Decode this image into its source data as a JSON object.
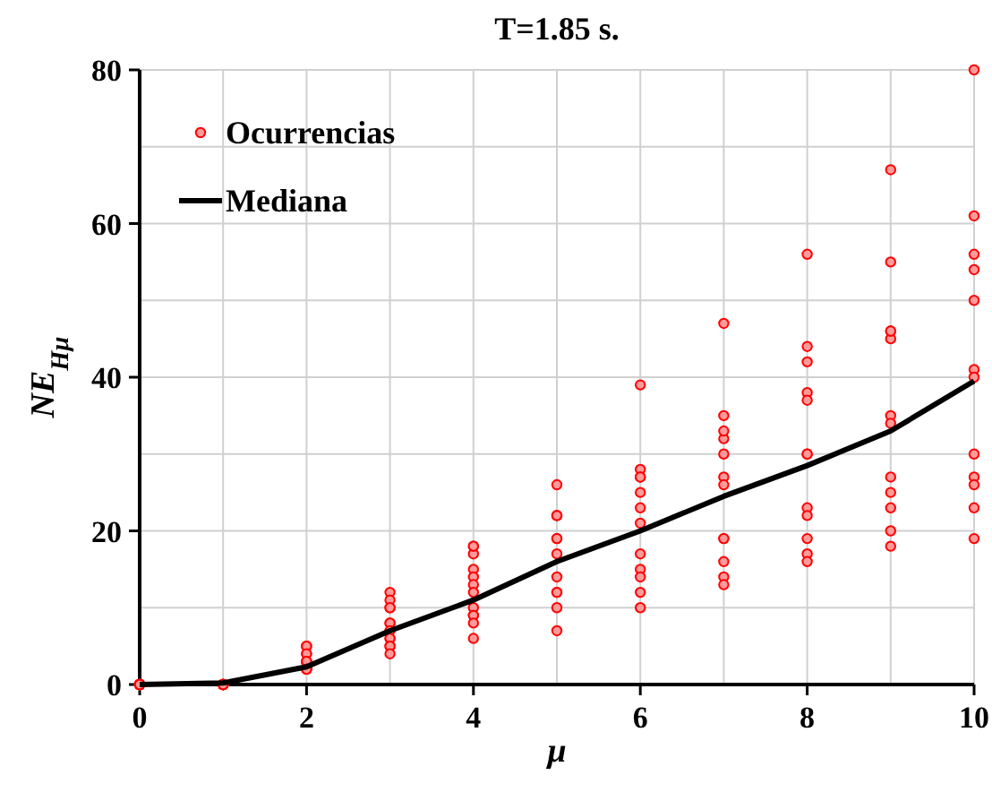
{
  "chart_data": {
    "type": "scatter",
    "title": "T=1.85 s.",
    "xlabel": "μ",
    "ylabel": "NE$_{Hμ}$",
    "xlim": [
      0,
      10
    ],
    "ylim": [
      0,
      80
    ],
    "xticks": [
      0,
      2,
      4,
      6,
      8,
      10
    ],
    "yticks": [
      0,
      20,
      40,
      60,
      80
    ],
    "grid": true,
    "legend": "top left",
    "series": [
      {
        "name": "Ocurrencias",
        "marker": "circle",
        "color": "#ff0000",
        "x": [
          0,
          1,
          2,
          3,
          4,
          5,
          6,
          7,
          8,
          9,
          10,
          0,
          1,
          2,
          3,
          4,
          5,
          6,
          7,
          8,
          9,
          10,
          0,
          1,
          2,
          3,
          4,
          5,
          6,
          7,
          8,
          9,
          10,
          0,
          1,
          2,
          3,
          4,
          5,
          6,
          7,
          8,
          9,
          10,
          0,
          1,
          2,
          3,
          4,
          5,
          6,
          7,
          8,
          9,
          10,
          0,
          1,
          2,
          3,
          4,
          5,
          6,
          7,
          8,
          9,
          10,
          0,
          1,
          2,
          3,
          4,
          5,
          6,
          7,
          8,
          9,
          10,
          0,
          1,
          2,
          3,
          4,
          5,
          6,
          7,
          8,
          9,
          10,
          0,
          1,
          2,
          3,
          4,
          5,
          6,
          7,
          8,
          9,
          10,
          0,
          1,
          2,
          3,
          4,
          5,
          6,
          7,
          8,
          9,
          10,
          0,
          1,
          2,
          3,
          4,
          5,
          6,
          7,
          8,
          9,
          10,
          0,
          1,
          2,
          3,
          4,
          5,
          6,
          7,
          8,
          9,
          10
        ],
        "values": [
          0,
          0,
          3,
          8,
          15,
          26,
          39,
          47,
          56,
          67,
          80,
          0,
          0,
          4,
          10,
          17,
          22,
          28,
          35,
          44,
          55,
          61,
          0,
          0,
          5,
          12,
          18,
          22,
          27,
          32,
          38,
          45,
          56,
          0,
          0,
          5,
          11,
          18,
          22,
          27,
          33,
          42,
          46,
          50,
          0,
          0,
          4,
          10,
          14,
          19,
          25,
          30,
          37,
          46,
          54,
          0,
          0,
          3,
          8,
          13,
          19,
          23,
          27,
          30,
          35,
          41,
          0,
          0,
          3,
          7,
          12,
          17,
          21,
          26,
          30,
          34,
          40,
          0,
          0,
          3,
          6,
          10,
          14,
          17,
          19,
          23,
          27,
          30,
          0,
          0,
          2,
          6,
          9,
          12,
          15,
          19,
          22,
          25,
          27,
          0,
          0,
          2,
          5,
          9,
          12,
          14,
          16,
          19,
          23,
          26,
          0,
          0,
          2,
          5,
          8,
          10,
          12,
          14,
          17,
          20,
          23,
          0,
          0,
          2,
          4,
          6,
          7,
          10,
          13,
          16,
          18,
          19
        ]
      },
      {
        "name": "Mediana",
        "type": "line",
        "color": "#000000",
        "marker": "none",
        "line_style": "solid",
        "x": [
          0,
          1,
          2,
          3,
          4,
          5,
          6,
          7,
          8,
          9,
          10
        ],
        "values": [
          0,
          0.2,
          2.3,
          7,
          11,
          16,
          20,
          24.5,
          28.5,
          33,
          39.5
        ]
      }
    ]
  }
}
